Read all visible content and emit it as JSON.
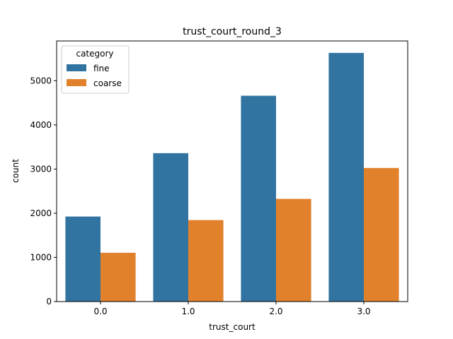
{
  "chart_data": {
    "type": "bar",
    "title": "trust_court_round_3",
    "xlabel": "trust_court",
    "ylabel": "count",
    "categories": [
      "0.0",
      "1.0",
      "2.0",
      "3.0"
    ],
    "series": [
      {
        "name": "fine",
        "color": "#3274a1",
        "values": [
          1925,
          3360,
          4660,
          5630
        ]
      },
      {
        "name": "coarse",
        "color": "#e1812c",
        "values": [
          1105,
          1845,
          2325,
          3025
        ]
      }
    ],
    "ylim": [
      0,
      5900
    ],
    "yticks": [
      0,
      1000,
      2000,
      3000,
      4000,
      5000
    ],
    "grid": false,
    "legend": {
      "title": "category",
      "placement": "top-left"
    }
  }
}
